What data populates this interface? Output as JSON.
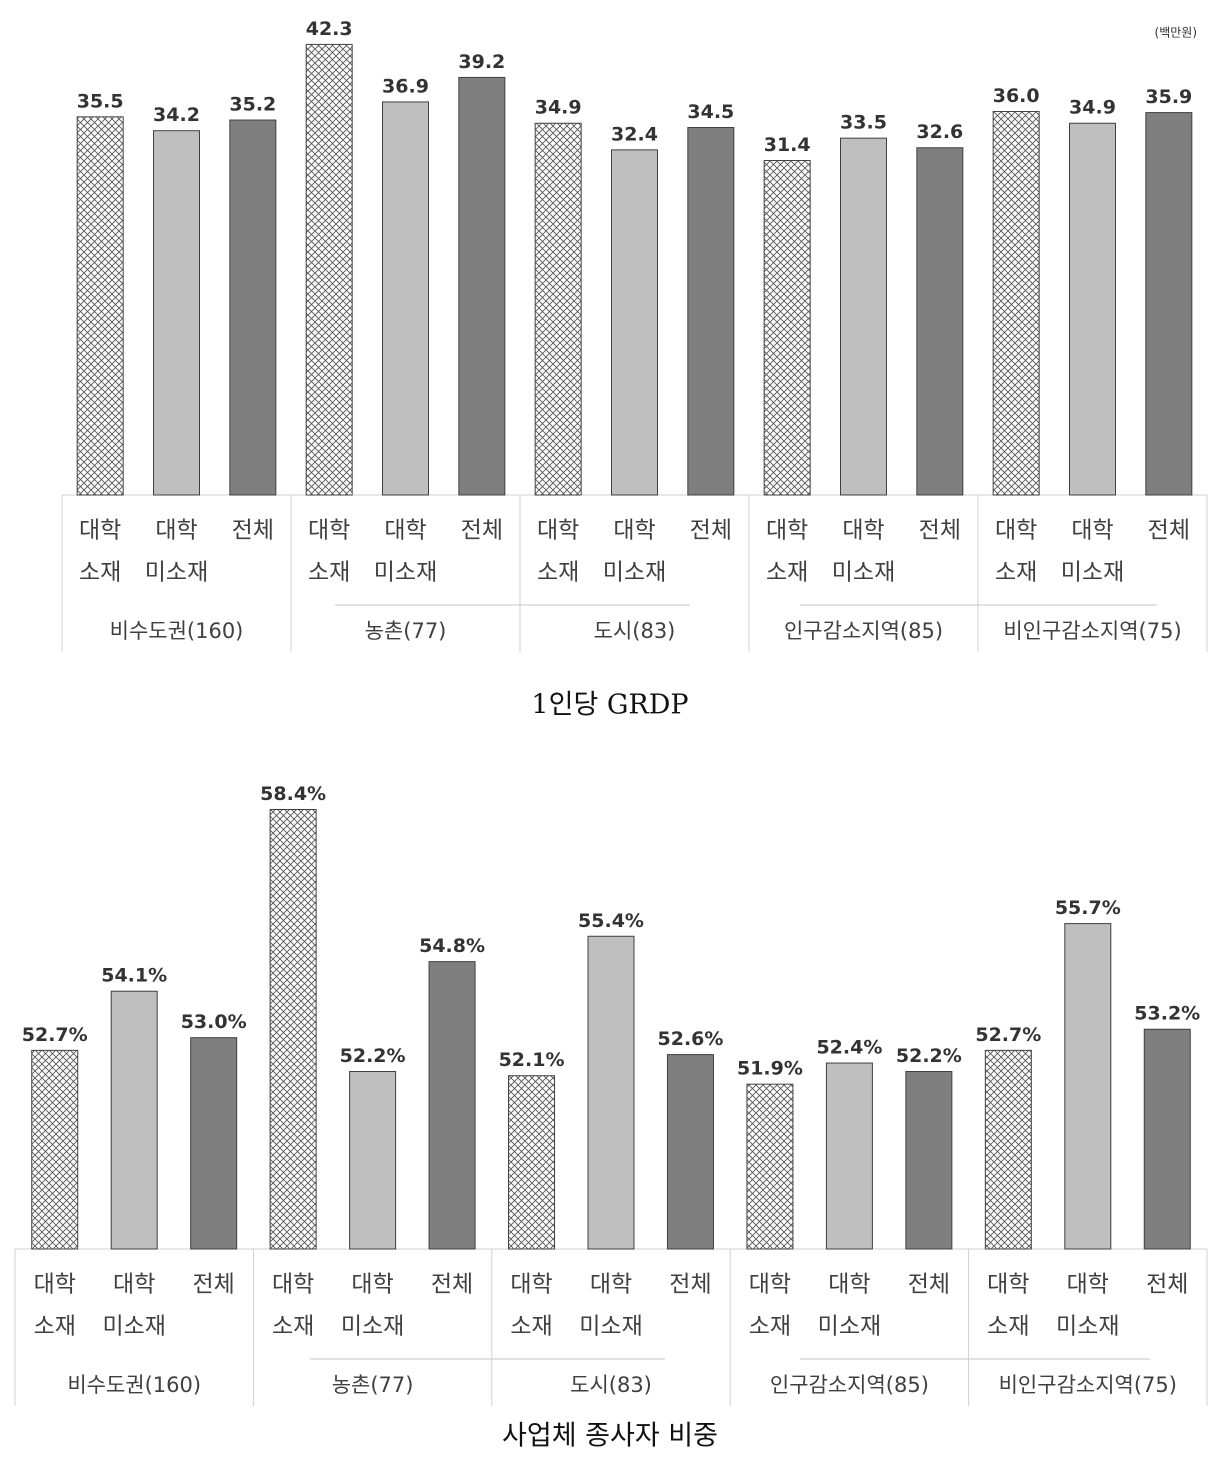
{
  "chart_data": [
    {
      "type": "bar",
      "title": "1인당 GRDP",
      "unit": "(백만원)",
      "ylim": [
        0,
        46
      ],
      "bar_styles": [
        {
          "fill": "#ffffff",
          "pattern": "crosshatch"
        },
        {
          "fill": "#bfbfbf"
        },
        {
          "fill": "#7f7f7f"
        }
      ],
      "groups": [
        {
          "name": "비수도권(160)",
          "categories": [
            [
              "대학",
              "소재"
            ],
            [
              "대학",
              "미소재"
            ],
            [
              "전체"
            ]
          ],
          "values": [
            35.5,
            34.2,
            35.2
          ],
          "value_labels": [
            "35.5",
            "34.2",
            "35.2"
          ]
        },
        {
          "name": "농촌(77)",
          "categories": [
            [
              "대학",
              "소재"
            ],
            [
              "대학",
              "미소재"
            ],
            [
              "전체"
            ]
          ],
          "values": [
            42.3,
            36.9,
            39.2
          ],
          "value_labels": [
            "42.3",
            "36.9",
            "39.2"
          ]
        },
        {
          "name": "도시(83)",
          "categories": [
            [
              "대학",
              "소재"
            ],
            [
              "대학",
              "미소재"
            ],
            [
              "전체"
            ]
          ],
          "values": [
            34.9,
            32.4,
            34.5
          ],
          "value_labels": [
            "34.9",
            "32.4",
            "34.5"
          ]
        },
        {
          "name": "인구감소지역(85)",
          "categories": [
            [
              "대학",
              "소재"
            ],
            [
              "대학",
              "미소재"
            ],
            [
              "전체"
            ]
          ],
          "values": [
            31.4,
            33.5,
            32.6
          ],
          "value_labels": [
            "31.4",
            "33.5",
            "32.6"
          ]
        },
        {
          "name": "비인구감소지역(75)",
          "categories": [
            [
              "대학",
              "소재"
            ],
            [
              "대학",
              "미소재"
            ],
            [
              "전체"
            ]
          ],
          "values": [
            36.0,
            34.9,
            35.9
          ],
          "value_labels": [
            "36.0",
            "34.9",
            "35.9"
          ]
        }
      ]
    },
    {
      "type": "bar",
      "title": "사업체 종사자 비중",
      "ylim": [
        48,
        59.5
      ],
      "bar_styles": [
        {
          "fill": "#ffffff",
          "pattern": "crosshatch"
        },
        {
          "fill": "#bfbfbf"
        },
        {
          "fill": "#7f7f7f"
        }
      ],
      "groups": [
        {
          "name": "비수도권(160)",
          "categories": [
            [
              "대학",
              "소재"
            ],
            [
              "대학",
              "미소재"
            ],
            [
              "전체"
            ]
          ],
          "values": [
            52.7,
            54.1,
            53.0
          ],
          "value_labels": [
            "52.7%",
            "54.1%",
            "53.0%"
          ]
        },
        {
          "name": "농촌(77)",
          "categories": [
            [
              "대학",
              "소재"
            ],
            [
              "대학",
              "미소재"
            ],
            [
              "전체"
            ]
          ],
          "values": [
            58.4,
            52.2,
            54.8
          ],
          "value_labels": [
            "58.4%",
            "52.2%",
            "54.8%"
          ]
        },
        {
          "name": "도시(83)",
          "categories": [
            [
              "대학",
              "소재"
            ],
            [
              "대학",
              "미소재"
            ],
            [
              "전체"
            ]
          ],
          "values": [
            52.1,
            55.4,
            52.6
          ],
          "value_labels": [
            "52.1%",
            "55.4%",
            "52.6%"
          ]
        },
        {
          "name": "인구감소지역(85)",
          "categories": [
            [
              "대학",
              "소재"
            ],
            [
              "대학",
              "미소재"
            ],
            [
              "전체"
            ]
          ],
          "values": [
            51.9,
            52.4,
            52.2
          ],
          "value_labels": [
            "51.9%",
            "52.4%",
            "52.2%"
          ]
        },
        {
          "name": "비인구감소지역(75)",
          "categories": [
            [
              "대학",
              "소재"
            ],
            [
              "대학",
              "미소재"
            ],
            [
              "전체"
            ]
          ],
          "values": [
            52.7,
            55.7,
            53.2
          ],
          "value_labels": [
            "52.7%",
            "55.7%",
            "53.2%"
          ]
        }
      ]
    }
  ]
}
